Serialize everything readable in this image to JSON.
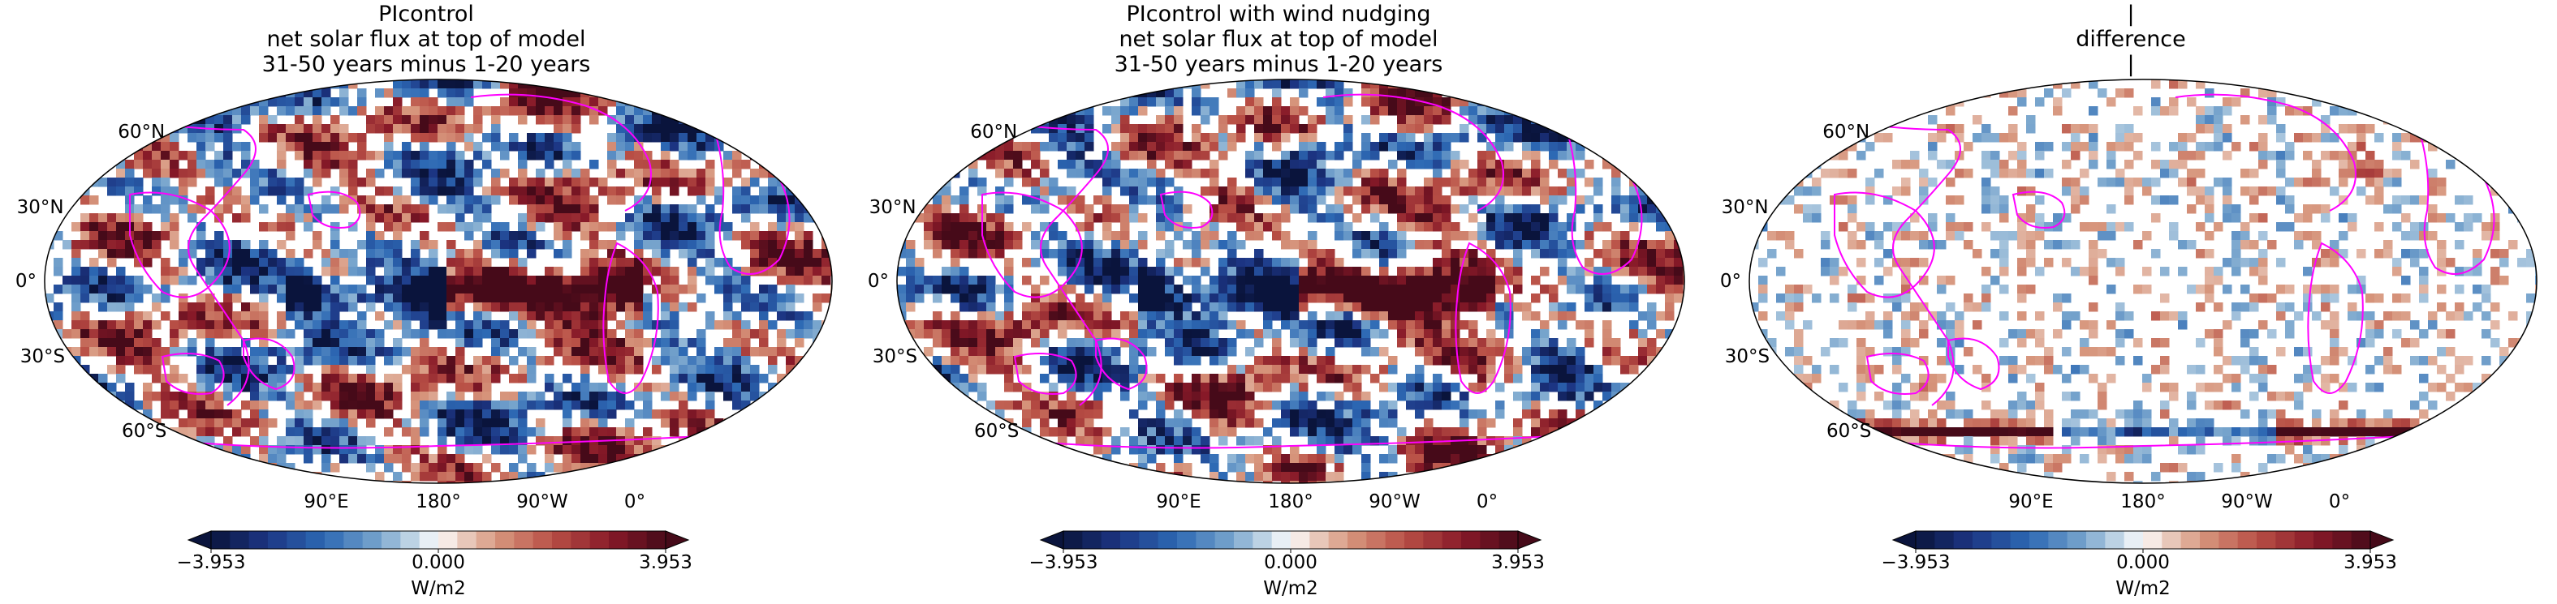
{
  "panels": [
    {
      "title": "PIcontrol\nnet solar flux at top of model\n31-50 years minus 1-20 years",
      "field": "absolute",
      "lat_labels": [
        "60°N",
        "30°N",
        "0°",
        "30°S",
        "60°S"
      ],
      "lon_labels": [
        "90°E",
        "180°",
        "90°W",
        "0°"
      ],
      "colorbar": {
        "min_label": "−3.953",
        "mid_label": "0.000",
        "max_label": "3.953",
        "unit": "W/m2"
      }
    },
    {
      "title": "PIcontrol with wind nudging\nnet solar flux at top of model\n31-50 years minus 1-20 years",
      "field": "absolute",
      "lat_labels": [
        "60°N",
        "30°N",
        "0°",
        "30°S",
        "60°S"
      ],
      "lon_labels": [
        "90°E",
        "180°",
        "90°W",
        "0°"
      ],
      "colorbar": {
        "min_label": "−3.953",
        "mid_label": "0.000",
        "max_label": "3.953",
        "unit": "W/m2"
      }
    },
    {
      "title": "|\ndifference\n|",
      "field": "difference",
      "lat_labels": [
        "60°N",
        "30°N",
        "0°",
        "30°S",
        "60°S"
      ],
      "lon_labels": [
        "90°E",
        "180°",
        "90°W",
        "0°"
      ],
      "colorbar": {
        "min_label": "−3.953",
        "mid_label": "0.000",
        "max_label": "3.953",
        "unit": "W/m2"
      }
    }
  ],
  "colors": {
    "coastline": "#ff00ff",
    "negative_end": "#0a1a4a",
    "positive_end": "#4a0a14",
    "zero": "#ffffff"
  },
  "colormap": "balance (diverging blue-white-red)"
}
